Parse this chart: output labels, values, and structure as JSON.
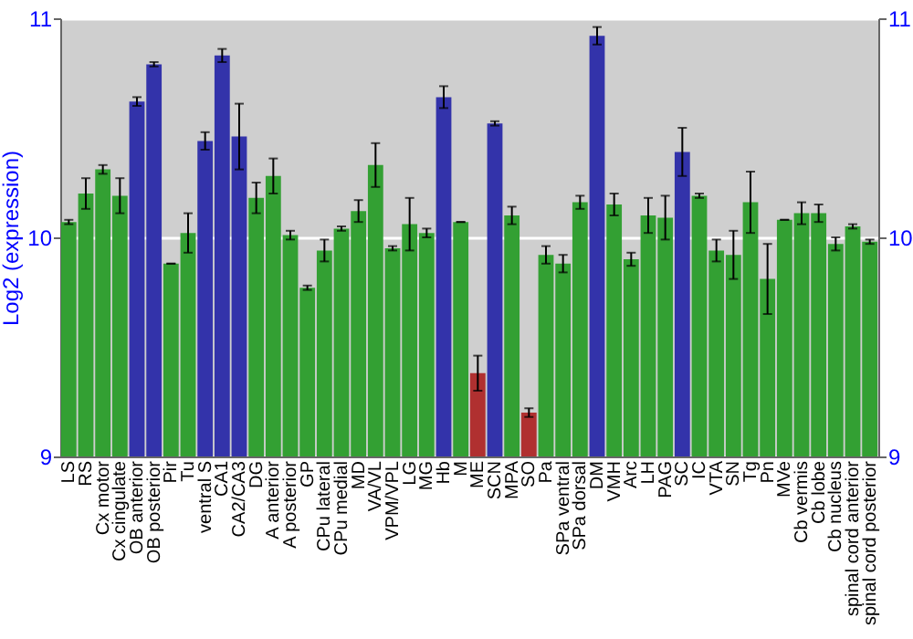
{
  "chart_data": {
    "type": "bar",
    "ylabel": "Log2 (expression)",
    "categories": [
      "LS",
      "RS",
      "Cx motor",
      "Cx cingulate",
      "OB anterior",
      "OB posterior",
      "Pir",
      "Tu",
      "ventral S",
      "CA1",
      "CA2/CA3",
      "DG",
      "A anterior",
      "A posterior",
      "GP",
      "CPu lateral",
      "CPu medial",
      "MD",
      "VA/VL",
      "VPM/VPL",
      "LG",
      "MG",
      "Hb",
      "M",
      "ME",
      "SCN",
      "MPA",
      "SO",
      "Pa",
      "SPa ventral",
      "SPa dorsal",
      "DM",
      "VMH",
      "Arc",
      "LH",
      "PAG",
      "SC",
      "IC",
      "VTA",
      "SN",
      "Tg",
      "Pn",
      "MVe",
      "Cb vermis",
      "Cb lobe",
      "Cb nucleus",
      "spinal cord anterior",
      "spinal cord posterior"
    ],
    "values": [
      10.07,
      10.2,
      10.31,
      10.19,
      10.62,
      10.79,
      9.88,
      10.02,
      10.44,
      10.83,
      10.46,
      10.18,
      10.28,
      10.01,
      9.77,
      9.94,
      10.04,
      10.12,
      10.33,
      9.95,
      10.06,
      10.02,
      10.64,
      10.07,
      9.38,
      10.52,
      10.1,
      9.2,
      9.92,
      9.88,
      10.16,
      10.92,
      10.15,
      9.9,
      10.1,
      10.09,
      10.39,
      10.19,
      9.94,
      9.92,
      10.16,
      9.81,
      10.08,
      10.11,
      10.11,
      9.97,
      10.05,
      9.98
    ],
    "errors": [
      0.01,
      0.07,
      0.02,
      0.08,
      0.02,
      0.01,
      0,
      0.09,
      0.04,
      0.03,
      0.15,
      0.07,
      0.08,
      0.02,
      0.01,
      0.05,
      0.01,
      0.05,
      0.1,
      0.01,
      0.12,
      0.02,
      0.05,
      0,
      0.08,
      0.01,
      0.04,
      0.02,
      0.04,
      0.04,
      0.03,
      0.04,
      0.05,
      0.03,
      0.08,
      0.1,
      0.11,
      0.01,
      0.05,
      0.11,
      0.14,
      0.16,
      0,
      0.05,
      0.04,
      0.03,
      0.01,
      0.01
    ],
    "colors": [
      "#33a033",
      "#33a033",
      "#33a033",
      "#33a033",
      "#3333aa",
      "#3333aa",
      "#33a033",
      "#33a033",
      "#3333aa",
      "#3333aa",
      "#3333aa",
      "#33a033",
      "#33a033",
      "#33a033",
      "#33a033",
      "#33a033",
      "#33a033",
      "#33a033",
      "#33a033",
      "#33a033",
      "#33a033",
      "#33a033",
      "#3333aa",
      "#33a033",
      "#b03030",
      "#3333aa",
      "#33a033",
      "#b03030",
      "#33a033",
      "#33a033",
      "#33a033",
      "#3333aa",
      "#33a033",
      "#33a033",
      "#33a033",
      "#33a033",
      "#3333aa",
      "#33a033",
      "#33a033",
      "#33a033",
      "#33a033",
      "#33a033",
      "#33a033",
      "#33a033",
      "#33a033",
      "#33a033",
      "#33a033",
      "#33a033"
    ],
    "ylim": [
      9,
      11
    ],
    "yticks": [
      9,
      10,
      11
    ],
    "y2lim": [
      9,
      11
    ],
    "y2ticks": [
      9,
      10,
      11
    ],
    "grid": "y"
  }
}
